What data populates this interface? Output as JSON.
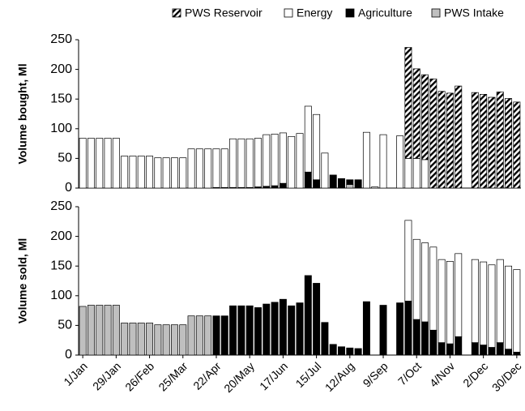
{
  "chart_data": [
    {
      "type": "bar",
      "stacked": true,
      "ylabel": "Volume bought, Ml",
      "ylim": [
        0,
        250
      ],
      "yticks": [
        0,
        50,
        100,
        150,
        200,
        250
      ],
      "grid": false,
      "legend": "top",
      "series": [
        {
          "name": "PWS Reservoir",
          "color": "#000000",
          "hatch": "diagonal",
          "values": [
            0,
            0,
            0,
            0,
            0,
            0,
            0,
            0,
            0,
            0,
            0,
            0,
            0,
            0,
            0,
            0,
            0,
            0,
            0,
            0,
            0,
            0,
            0,
            0,
            0,
            0,
            0,
            0,
            0,
            0,
            0,
            0,
            0,
            0,
            0,
            0,
            0,
            0,
            0,
            187,
            151,
            143,
            184,
            163,
            160,
            172,
            0,
            161,
            158,
            153,
            162,
            151,
            145
          ]
        },
        {
          "name": "Energy",
          "color": "#ffffff",
          "values": [
            84,
            84,
            84,
            84,
            84,
            54,
            54,
            54,
            54,
            51,
            51,
            51,
            51,
            66,
            66,
            66,
            65,
            65,
            82,
            82,
            82,
            82,
            87,
            87,
            85,
            87,
            92,
            111,
            110,
            59,
            0,
            0,
            0,
            0,
            94,
            2,
            90,
            0,
            88,
            50,
            50,
            48,
            0,
            0,
            0,
            0,
            0,
            0,
            0,
            0,
            0,
            0,
            0
          ]
        },
        {
          "name": "Agriculture",
          "color": "#000000",
          "values": [
            0,
            0,
            0,
            0,
            0,
            0,
            0,
            0,
            0,
            0,
            0,
            0,
            0,
            0,
            0,
            0,
            1,
            1,
            1,
            1,
            1,
            2,
            3,
            4,
            8,
            0,
            0,
            27,
            14,
            0,
            22,
            16,
            8,
            14,
            0,
            0,
            0,
            0,
            0,
            0,
            0,
            0,
            0,
            0,
            0,
            0,
            0,
            0,
            0,
            0,
            0,
            0,
            0
          ]
        },
        {
          "name": "PWS Intake",
          "color": "#bfbfbf",
          "values": [
            0,
            0,
            0,
            0,
            0,
            0,
            0,
            0,
            0,
            0,
            0,
            0,
            0,
            0,
            0,
            0,
            0,
            0,
            0,
            0,
            0,
            0,
            0,
            0,
            0,
            0,
            0,
            0,
            0,
            0,
            0,
            0,
            6,
            0,
            0,
            0,
            0,
            0,
            0,
            0,
            0,
            0,
            0,
            0,
            0,
            0,
            0,
            0,
            0,
            0,
            0,
            0,
            0
          ]
        }
      ]
    },
    {
      "type": "bar",
      "stacked": true,
      "ylabel": "Volume sold, Ml",
      "ylim": [
        0,
        250
      ],
      "yticks": [
        0,
        50,
        100,
        150,
        200,
        250
      ],
      "grid": false,
      "categories": [
        "1/Jan",
        null,
        null,
        null,
        "29/Jan",
        null,
        null,
        null,
        "26/Feb",
        null,
        null,
        null,
        "25/Mar",
        null,
        null,
        null,
        "22/Apr",
        null,
        null,
        null,
        "20/May",
        null,
        null,
        null,
        "17/Jun",
        null,
        null,
        null,
        "15/Jul",
        null,
        null,
        null,
        "12/Aug",
        null,
        null,
        null,
        "9/Sep",
        null,
        null,
        null,
        "7/Oct",
        null,
        null,
        null,
        "4/Nov",
        null,
        null,
        null,
        "2/Dec",
        null,
        null,
        null,
        "30/Dec"
      ],
      "series": [
        {
          "name": "Energy",
          "color": "#ffffff",
          "values": [
            0,
            0,
            0,
            0,
            0,
            0,
            0,
            0,
            0,
            0,
            0,
            0,
            0,
            0,
            0,
            0,
            0,
            0,
            0,
            0,
            0,
            0,
            0,
            0,
            0,
            0,
            0,
            0,
            0,
            0,
            0,
            0,
            0,
            0,
            0,
            0,
            0,
            0,
            0,
            136,
            135,
            133,
            140,
            140,
            139,
            140,
            0,
            140,
            140,
            139,
            140,
            140,
            139
          ]
        },
        {
          "name": "Agriculture",
          "color": "#000000",
          "values": [
            0,
            0,
            0,
            0,
            0,
            0,
            0,
            0,
            0,
            0,
            0,
            0,
            0,
            0,
            0,
            0,
            66,
            66,
            83,
            83,
            83,
            80,
            86,
            89,
            94,
            83,
            88,
            134,
            121,
            55,
            18,
            14,
            12,
            11,
            90,
            0,
            84,
            0,
            88,
            91,
            60,
            56,
            42,
            21,
            19,
            31,
            0,
            21,
            17,
            13,
            21,
            10,
            5
          ]
        },
        {
          "name": "PWS Intake",
          "color": "#bfbfbf",
          "values": [
            82,
            84,
            84,
            84,
            84,
            54,
            54,
            54,
            54,
            51,
            51,
            51,
            51,
            66,
            66,
            66,
            0,
            0,
            0,
            0,
            0,
            0,
            0,
            0,
            0,
            0,
            0,
            0,
            0,
            0,
            0,
            0,
            0,
            0,
            0,
            0,
            0,
            0,
            0,
            0,
            0,
            0,
            0,
            0,
            0,
            0,
            0,
            0,
            0,
            0,
            0,
            0,
            0
          ]
        }
      ]
    }
  ]
}
